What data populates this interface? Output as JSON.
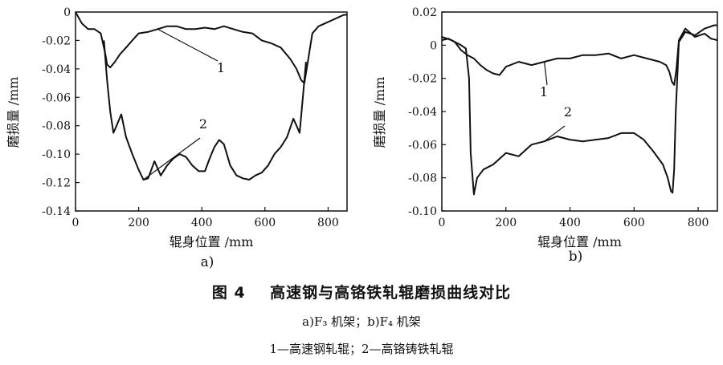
{
  "figure": {
    "number_label": "图 4",
    "title": "高速钢与高铬铁轧辊磨损曲线对比",
    "subtitle": "a)F₃ 机架；b)F₄ 机架",
    "legend_text": "1—高速钢轧辊；2—高铬铸铁轧辊"
  },
  "chart_data": [
    {
      "type": "line",
      "panel_label": "a)",
      "xlabel": "辊身位置 /mm",
      "ylabel": "磨损量 /mm",
      "xlim": [
        0,
        860
      ],
      "ylim": [
        -0.14,
        0
      ],
      "xticks": [
        0,
        200,
        400,
        600,
        800
      ],
      "yticks": [
        0,
        -0.02,
        -0.04,
        -0.06,
        -0.08,
        -0.1,
        -0.12,
        -0.14
      ],
      "ytick_labels": [
        "0",
        "-0.02",
        "-0.04",
        "-0.06",
        "-0.08",
        "-0.10",
        "-0.12",
        "-0.14"
      ],
      "series": [
        {
          "name": "1",
          "x": [
            0,
            20,
            40,
            60,
            80,
            95,
            100,
            110,
            125,
            140,
            160,
            180,
            200,
            230,
            260,
            290,
            320,
            350,
            380,
            410,
            440,
            470,
            500,
            530,
            560,
            590,
            620,
            650,
            680,
            700,
            715,
            725,
            735,
            750,
            770,
            790,
            810,
            830,
            850,
            860
          ],
          "y": [
            0,
            -0.008,
            -0.012,
            -0.012,
            -0.015,
            -0.03,
            -0.037,
            -0.039,
            -0.035,
            -0.03,
            -0.025,
            -0.02,
            -0.015,
            -0.014,
            -0.012,
            -0.01,
            -0.01,
            -0.012,
            -0.012,
            -0.011,
            -0.012,
            -0.01,
            -0.012,
            -0.014,
            -0.015,
            -0.02,
            -0.022,
            -0.025,
            -0.033,
            -0.04,
            -0.048,
            -0.05,
            -0.036,
            -0.015,
            -0.01,
            -0.008,
            -0.006,
            -0.004,
            -0.002,
            -0.002
          ]
        },
        {
          "name": "2",
          "x": [
            90,
            100,
            110,
            120,
            130,
            145,
            160,
            180,
            200,
            215,
            230,
            250,
            270,
            290,
            310,
            330,
            350,
            370,
            390,
            410,
            425,
            440,
            455,
            470,
            490,
            510,
            530,
            550,
            570,
            590,
            610,
            630,
            650,
            670,
            690,
            700,
            710,
            720,
            730
          ],
          "y": [
            -0.02,
            -0.048,
            -0.07,
            -0.085,
            -0.08,
            -0.072,
            -0.088,
            -0.1,
            -0.111,
            -0.118,
            -0.117,
            -0.105,
            -0.115,
            -0.108,
            -0.103,
            -0.1,
            -0.102,
            -0.108,
            -0.112,
            -0.112,
            -0.103,
            -0.095,
            -0.09,
            -0.093,
            -0.108,
            -0.115,
            -0.117,
            -0.118,
            -0.115,
            -0.113,
            -0.108,
            -0.1,
            -0.095,
            -0.088,
            -0.075,
            -0.08,
            -0.085,
            -0.06,
            -0.035
          ]
        }
      ]
    },
    {
      "type": "line",
      "panel_label": "b)",
      "xlabel": "辊身位置 /mm",
      "ylabel": "磨损量 /mm",
      "xlim": [
        0,
        860
      ],
      "ylim": [
        -0.1,
        0.02
      ],
      "xticks": [
        0,
        200,
        400,
        600,
        800
      ],
      "yticks": [
        0.02,
        0,
        -0.02,
        -0.04,
        -0.06,
        -0.08,
        -0.1
      ],
      "ytick_labels": [
        "0.02",
        "0",
        "-0.02",
        "-0.04",
        "-0.06",
        "-0.08",
        "-0.10"
      ],
      "series": [
        {
          "name": "1",
          "x": [
            0,
            20,
            40,
            60,
            80,
            100,
            120,
            140,
            160,
            180,
            200,
            240,
            280,
            320,
            360,
            400,
            440,
            480,
            520,
            560,
            600,
            640,
            680,
            700,
            710,
            718,
            725,
            732,
            740,
            760,
            790,
            820,
            840,
            860
          ],
          "y": [
            0.003,
            0.004,
            0.002,
            -0.003,
            -0.006,
            -0.008,
            -0.012,
            -0.015,
            -0.017,
            -0.018,
            -0.013,
            -0.01,
            -0.012,
            -0.01,
            -0.008,
            -0.008,
            -0.006,
            -0.006,
            -0.005,
            -0.008,
            -0.006,
            -0.008,
            -0.01,
            -0.012,
            -0.016,
            -0.022,
            -0.024,
            -0.015,
            0.003,
            0.01,
            0.005,
            0.007,
            0.004,
            0.003
          ]
        },
        {
          "name": "2",
          "x": [
            0,
            30,
            60,
            75,
            85,
            90,
            100,
            110,
            130,
            160,
            200,
            240,
            280,
            320,
            360,
            400,
            440,
            480,
            520,
            560,
            600,
            630,
            660,
            690,
            705,
            715,
            720,
            725,
            730,
            740,
            760,
            790,
            820,
            850,
            860
          ],
          "y": [
            0.005,
            0.003,
            0.0,
            -0.002,
            -0.02,
            -0.065,
            -0.09,
            -0.08,
            -0.075,
            -0.072,
            -0.065,
            -0.067,
            -0.06,
            -0.058,
            -0.055,
            -0.057,
            -0.058,
            -0.057,
            -0.056,
            -0.053,
            -0.053,
            -0.057,
            -0.064,
            -0.072,
            -0.08,
            -0.088,
            -0.089,
            -0.075,
            -0.04,
            0.002,
            0.008,
            0.006,
            0.01,
            0.012,
            0.012
          ]
        }
      ]
    }
  ]
}
